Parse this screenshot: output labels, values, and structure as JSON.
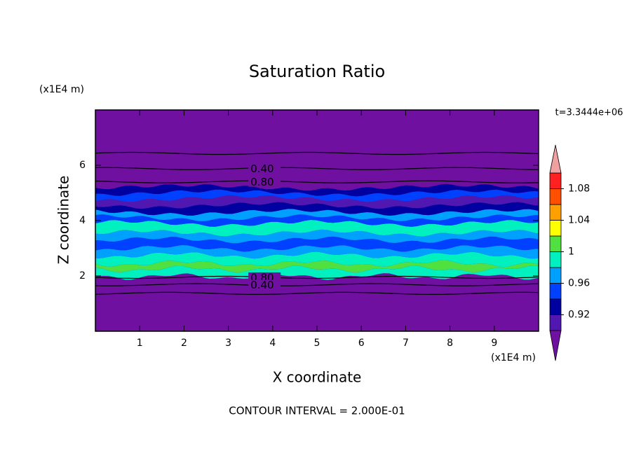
{
  "chart_data": {
    "type": "contour",
    "title": "Saturation Ratio",
    "xlabel": "X coordinate",
    "ylabel": "Z coordinate",
    "xunits": "(x1E4 m)",
    "yunits": "(x1E4 m)",
    "time_label": "t=3.3444e+06",
    "footer": "CONTOUR INTERVAL = 2.000E-01",
    "xlim": [
      0,
      10
    ],
    "ylim": [
      0,
      8
    ],
    "xticks": [
      1,
      2,
      3,
      4,
      5,
      6,
      7,
      8,
      9
    ],
    "yticks": [
      2,
      4,
      6
    ],
    "background_color": "#7010a0",
    "colorbar": {
      "levels": [
        0.9,
        0.92,
        0.94,
        0.96,
        0.98,
        1,
        1.02,
        1.04,
        1.06,
        1.08,
        1.1
      ],
      "colors": [
        "#5018b0",
        "#0000a0",
        "#0040ff",
        "#00a0ff",
        "#00f0c0",
        "#50e040",
        "#ffff00",
        "#ffa000",
        "#ff5000",
        "#ff2020"
      ],
      "under_color": "#7010a0",
      "over_color": "#f0a0a0",
      "ticks": [
        0.92,
        0.96,
        1,
        1.04,
        1.08
      ]
    },
    "bands": [
      {
        "z": [
          1.98,
          2.25
        ],
        "value": 0.99
      },
      {
        "z": [
          2.25,
          2.45
        ],
        "value": 1.01
      },
      {
        "z": [
          2.45,
          2.75
        ],
        "value": 0.99
      },
      {
        "z": [
          2.75,
          3.0
        ],
        "value": 0.97
      },
      {
        "z": [
          3.0,
          3.3
        ],
        "value": 0.95
      },
      {
        "z": [
          3.3,
          3.55
        ],
        "value": 0.97
      },
      {
        "z": [
          3.55,
          3.9
        ],
        "value": 0.99
      },
      {
        "z": [
          3.9,
          4.1
        ],
        "value": 0.95
      },
      {
        "z": [
          4.1,
          4.3
        ],
        "value": 0.97
      },
      {
        "z": [
          4.3,
          4.55
        ],
        "value": 0.93
      },
      {
        "z": [
          4.55,
          4.8
        ],
        "value": 0.91
      },
      {
        "z": [
          4.8,
          5.0
        ],
        "value": 0.95
      },
      {
        "z": [
          5.0,
          5.2
        ],
        "value": 0.93
      }
    ],
    "contours": [
      {
        "level": 0.2,
        "z": 6.43
      },
      {
        "level": {
          "value": 0.4,
          "label": "0.40"
        },
        "z": 5.88,
        "label_x": 3.5
      },
      {
        "level": {
          "value": 0.8,
          "label": "0.80"
        },
        "z": 5.4,
        "label_x": 3.5
      },
      {
        "level": {
          "value": 0.8,
          "label": "0.80"
        },
        "z": 1.95,
        "label_x": 3.5
      },
      {
        "level": {
          "value": 0.4,
          "label": "0.40"
        },
        "z": 1.68,
        "label_x": 3.5
      },
      {
        "level": 0.2,
        "z": 1.37
      }
    ]
  }
}
